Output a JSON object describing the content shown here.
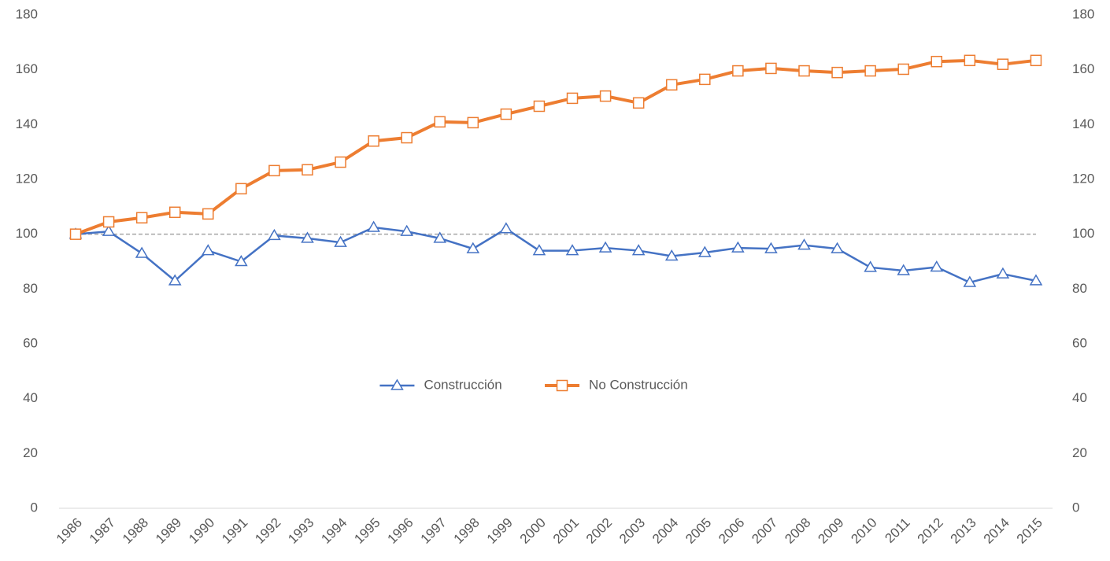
{
  "chart_data": {
    "type": "line",
    "categories": [
      "1986",
      "1987",
      "1988",
      "1989",
      "1990",
      "1991",
      "1992",
      "1993",
      "1994",
      "1995",
      "1996",
      "1997",
      "1998",
      "1999",
      "2000",
      "2001",
      "2002",
      "2003",
      "2004",
      "2005",
      "2006",
      "2007",
      "2008",
      "2009",
      "2010",
      "2011",
      "2012",
      "2013",
      "2014",
      "2015"
    ],
    "series": [
      {
        "name": "Construcción",
        "color": "#4472c4",
        "marker": "triangle",
        "values": [
          100,
          101,
          93,
          83,
          94,
          90,
          99.5,
          98.5,
          97,
          102.5,
          101,
          98.5,
          94.7,
          102,
          94,
          94,
          95,
          94,
          92,
          93.3,
          95,
          94.7,
          96,
          94.7,
          87.9,
          86.7,
          88,
          82.4,
          85.5,
          83
        ]
      },
      {
        "name": "No Construcción",
        "color": "#ed7d31",
        "marker": "square",
        "values": [
          100,
          104.5,
          106,
          108,
          107.4,
          116.6,
          123.2,
          123.5,
          126.3,
          134,
          135.2,
          141,
          140.7,
          143.8,
          146.7,
          149.6,
          150.4,
          147.9,
          154.5,
          156.5,
          159.6,
          160.5,
          159.6,
          159,
          159.6,
          160.2,
          163,
          163.4,
          162,
          163.4
        ]
      }
    ],
    "ylim": [
      0,
      180
    ],
    "yticks": [
      0,
      20,
      40,
      60,
      80,
      100,
      120,
      140,
      160,
      180
    ],
    "y2lim": [
      0,
      180
    ],
    "y2ticks": [
      0,
      20,
      40,
      60,
      80,
      100,
      120,
      140,
      160,
      180
    ],
    "reference_line": {
      "value": 100,
      "color": "#a5a5a5"
    },
    "grid": false,
    "legend": "center"
  }
}
